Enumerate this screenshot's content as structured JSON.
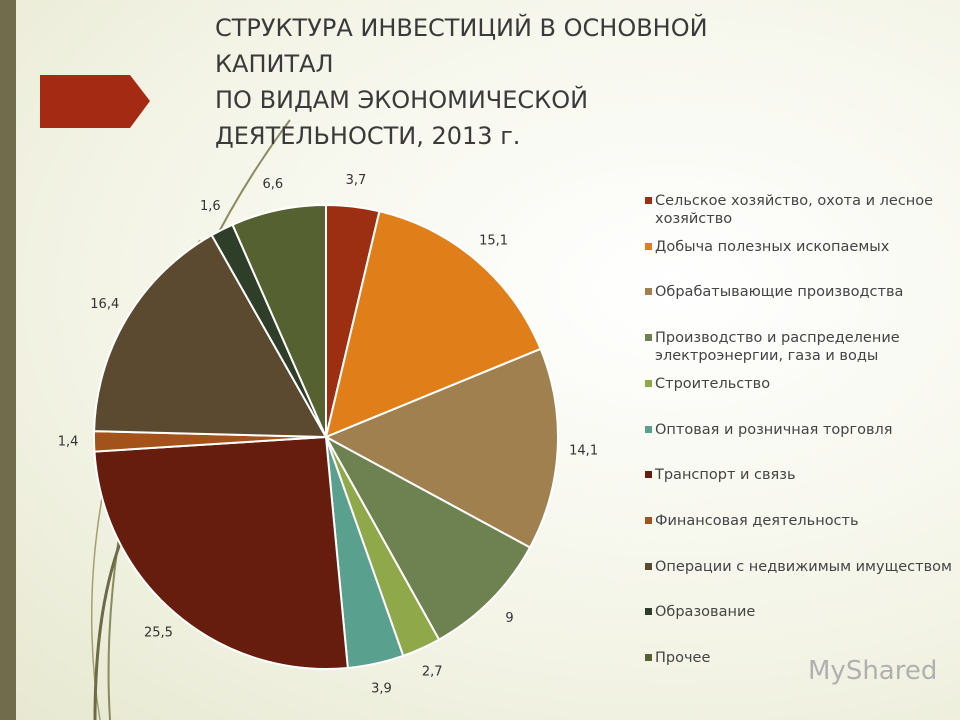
{
  "chart_data": {
    "type": "pie",
    "title": "СТРУКТУРА ИНВЕСТИЦИЙ В ОСНОВНОЙ\nКАПИТАЛ\nПО ВИДАМ ЭКОНОМИЧЕСКОЙ\nДЕЯТЕЛЬНОСТИ, 2013 г.",
    "categories": [
      "Сельское хозяйство, охота и лесное хозяйство",
      "Добыча полезных ископаемых",
      "Обрабатывающие производства",
      "Производство и распределение электроэнергии, газа и воды",
      "Строительство",
      "Оптовая и розничная торговля",
      "Транспорт и связь",
      "Финансовая деятельность",
      "Операции с недвижимым имуществом",
      "Образование",
      "Прочее"
    ],
    "values": [
      3.7,
      15.1,
      14.1,
      9,
      2.7,
      3.9,
      25.5,
      1.4,
      16.4,
      1.6,
      6.6
    ],
    "value_labels": [
      "3,7",
      "15,1",
      "14,1",
      "9",
      "2,7",
      "3,9",
      "25,5",
      "1,4",
      "16,4",
      "1,6",
      "6,6"
    ],
    "colors": [
      "#9c2e12",
      "#e07f1a",
      "#a0804f",
      "#6e8150",
      "#8fa84a",
      "#5aa08e",
      "#661d0d",
      "#a3521a",
      "#5c4a30",
      "#2f3e28",
      "#556130"
    ],
    "legend": "right"
  },
  "watermark": "MyShared"
}
